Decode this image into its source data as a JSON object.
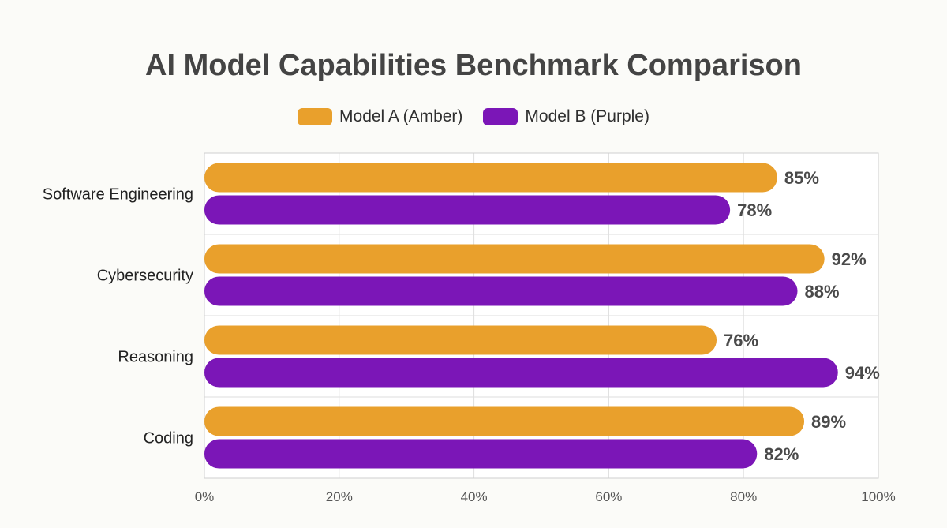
{
  "chart_data": {
    "type": "bar",
    "orientation": "horizontal",
    "title": "AI Model Capabilities Benchmark Comparison",
    "categories": [
      "Software Engineering",
      "Cybersecurity",
      "Reasoning",
      "Coding"
    ],
    "series": [
      {
        "name": "Model A (Amber)",
        "color": "#e9a02c",
        "values": [
          85,
          92,
          76,
          89
        ]
      },
      {
        "name": "Model B (Purple)",
        "color": "#7b16b7",
        "values": [
          78,
          88,
          94,
          82
        ]
      }
    ],
    "xlim": [
      0,
      100
    ],
    "xticks": [
      "0%",
      "20%",
      "40%",
      "60%",
      "80%",
      "100%"
    ],
    "value_suffix": "%",
    "grid": true,
    "legend_position": "top-center"
  }
}
